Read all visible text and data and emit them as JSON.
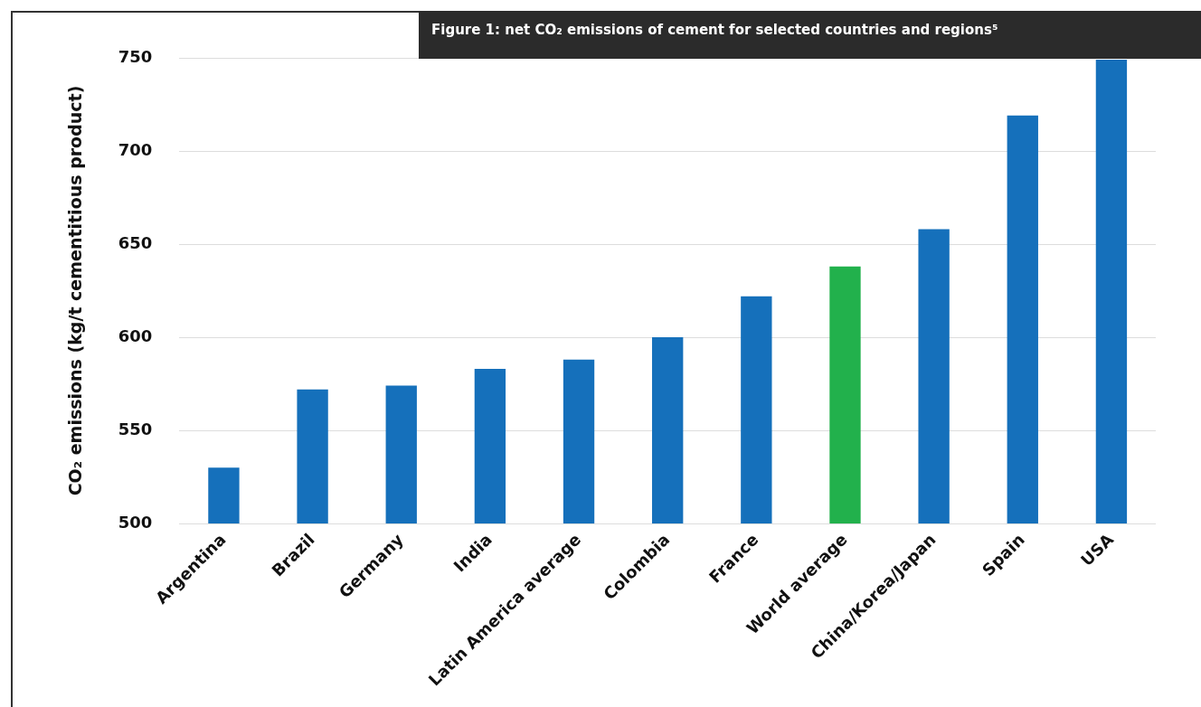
{
  "chart_data": {
    "type": "bar",
    "title": "Figure 1: net CO₂ emissions of cement for selected countries and regions⁵",
    "ylabel": "CO₂ emissions (kg/t cementitious product)",
    "categories": [
      "Argentina",
      "Brazil",
      "Germany",
      "India",
      "Latin America average",
      "Colombia",
      "France",
      "World average",
      "China/Korea/Japan",
      "Spain",
      "USA"
    ],
    "values": [
      530,
      572,
      574,
      583,
      588,
      600,
      622,
      638,
      658,
      719,
      749
    ],
    "colors": [
      "#1570bb",
      "#1570bb",
      "#1570bb",
      "#1570bb",
      "#1570bb",
      "#1570bb",
      "#1570bb",
      "#22b14c",
      "#1570bb",
      "#1570bb",
      "#1570bb"
    ],
    "ylim": [
      500,
      750
    ],
    "yticks": [
      500,
      550,
      600,
      650,
      700,
      750
    ],
    "grid": "y",
    "legend": false
  }
}
